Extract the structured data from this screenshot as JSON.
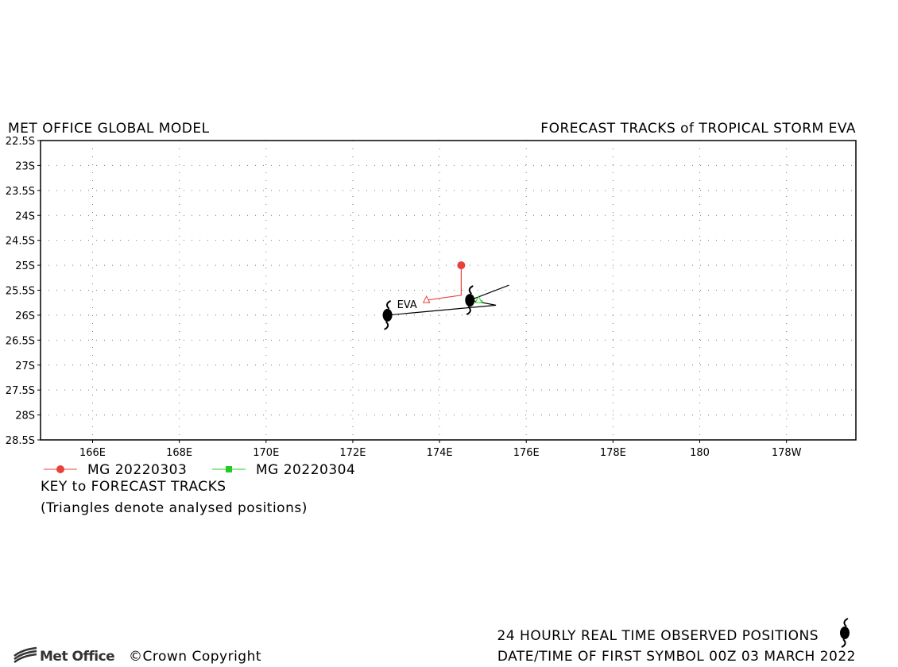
{
  "chart_data": {
    "type": "track",
    "title_left": "MET OFFICE GLOBAL MODEL",
    "title_right": "FORECAST TRACKS of TROPICAL STORM EVA",
    "storm_label": "EVA",
    "xlim": [
      164.8,
      183.6
    ],
    "ylim": [
      -28.5,
      -22.5
    ],
    "xticks": [
      {
        "value": 166,
        "label": "166E"
      },
      {
        "value": 168,
        "label": "168E"
      },
      {
        "value": 170,
        "label": "170E"
      },
      {
        "value": 172,
        "label": "172E"
      },
      {
        "value": 174,
        "label": "174E"
      },
      {
        "value": 176,
        "label": "176E"
      },
      {
        "value": 178,
        "label": "178E"
      },
      180,
      {
        "value": 182,
        "label": "178W"
      }
    ],
    "yticks": [
      {
        "value": -22.5,
        "label": "22.5S"
      },
      {
        "value": -23,
        "label": "23S"
      },
      {
        "value": -23.5,
        "label": "23.5S"
      },
      {
        "value": -24,
        "label": "24S"
      },
      {
        "value": -24.5,
        "label": "24.5S"
      },
      {
        "value": -25,
        "label": "25S"
      },
      {
        "value": -25.5,
        "label": "25.5S"
      },
      {
        "value": -26,
        "label": "26S"
      },
      {
        "value": -26.5,
        "label": "26.5S"
      },
      {
        "value": -27,
        "label": "27S"
      },
      {
        "value": -27.5,
        "label": "27.5S"
      },
      {
        "value": -28,
        "label": "28S"
      },
      {
        "value": -28.5,
        "label": "28.5S"
      }
    ],
    "grid": true,
    "series": [
      {
        "name": "MG 20220303",
        "color": "#e8403a",
        "marker": "circle",
        "x": [
          173.7,
          174.5,
          174.5
        ],
        "y": [
          -25.7,
          -25.6,
          -25.0
        ]
      },
      {
        "name": "MG 20220304",
        "color": "#22cc22",
        "marker": "square",
        "x": [
          174.9,
          175.0
        ],
        "y": [
          -25.7,
          -25.72
        ]
      }
    ],
    "observed": {
      "color": "#000000",
      "x": [
        172.8,
        175.3,
        174.7,
        175.6
      ],
      "y": [
        -26.0,
        -25.8,
        -25.7,
        -25.4
      ],
      "symbols_x": [
        172.8,
        174.7
      ],
      "symbols_y": [
        -26.0,
        -25.7
      ]
    },
    "key_title": "KEY to FORECAST TRACKS",
    "key_note": "(Triangles denote analysed positions)",
    "footer_observed": "24 HOURLY REAL TIME OBSERVED POSITIONS",
    "footer_date": "DATE/TIME OF FIRST SYMBOL 00Z 03 MARCH 2022",
    "logo": "Met Office",
    "copyright": "©Crown Copyright"
  }
}
